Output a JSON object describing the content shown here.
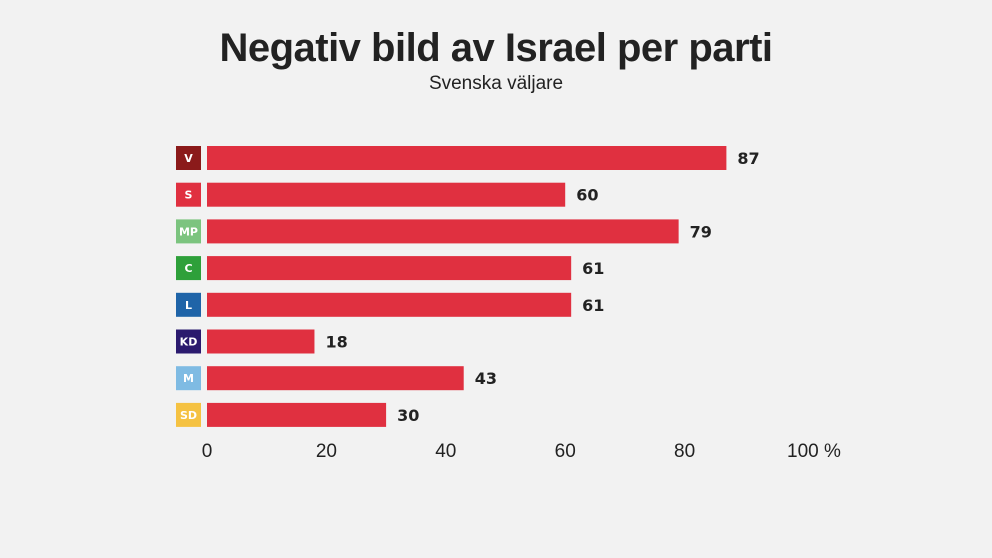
{
  "chart_data": {
    "type": "bar",
    "orientation": "horizontal",
    "title": "Negativ bild av Israel per parti",
    "subtitle": "Svenska väljare",
    "categories": [
      "V",
      "S",
      "MP",
      "C",
      "L",
      "KD",
      "M",
      "SD"
    ],
    "values": [
      87,
      60,
      79,
      61,
      61,
      18,
      43,
      30
    ],
    "category_colors": [
      "#8b1a1a",
      "#e03040",
      "#7cc47f",
      "#2ea03a",
      "#1f64a8",
      "#2b1a6e",
      "#7fbbe3",
      "#f5c242"
    ],
    "bar_color": "#e03040",
    "xlabel": "",
    "ylabel": "",
    "xlim": [
      0,
      100
    ],
    "xticks": [
      0,
      20,
      40,
      60,
      80,
      100
    ],
    "xtick_labels": [
      "0",
      "20",
      "40",
      "60",
      "80",
      "100 %"
    ],
    "grid": false,
    "data_labels": true
  }
}
